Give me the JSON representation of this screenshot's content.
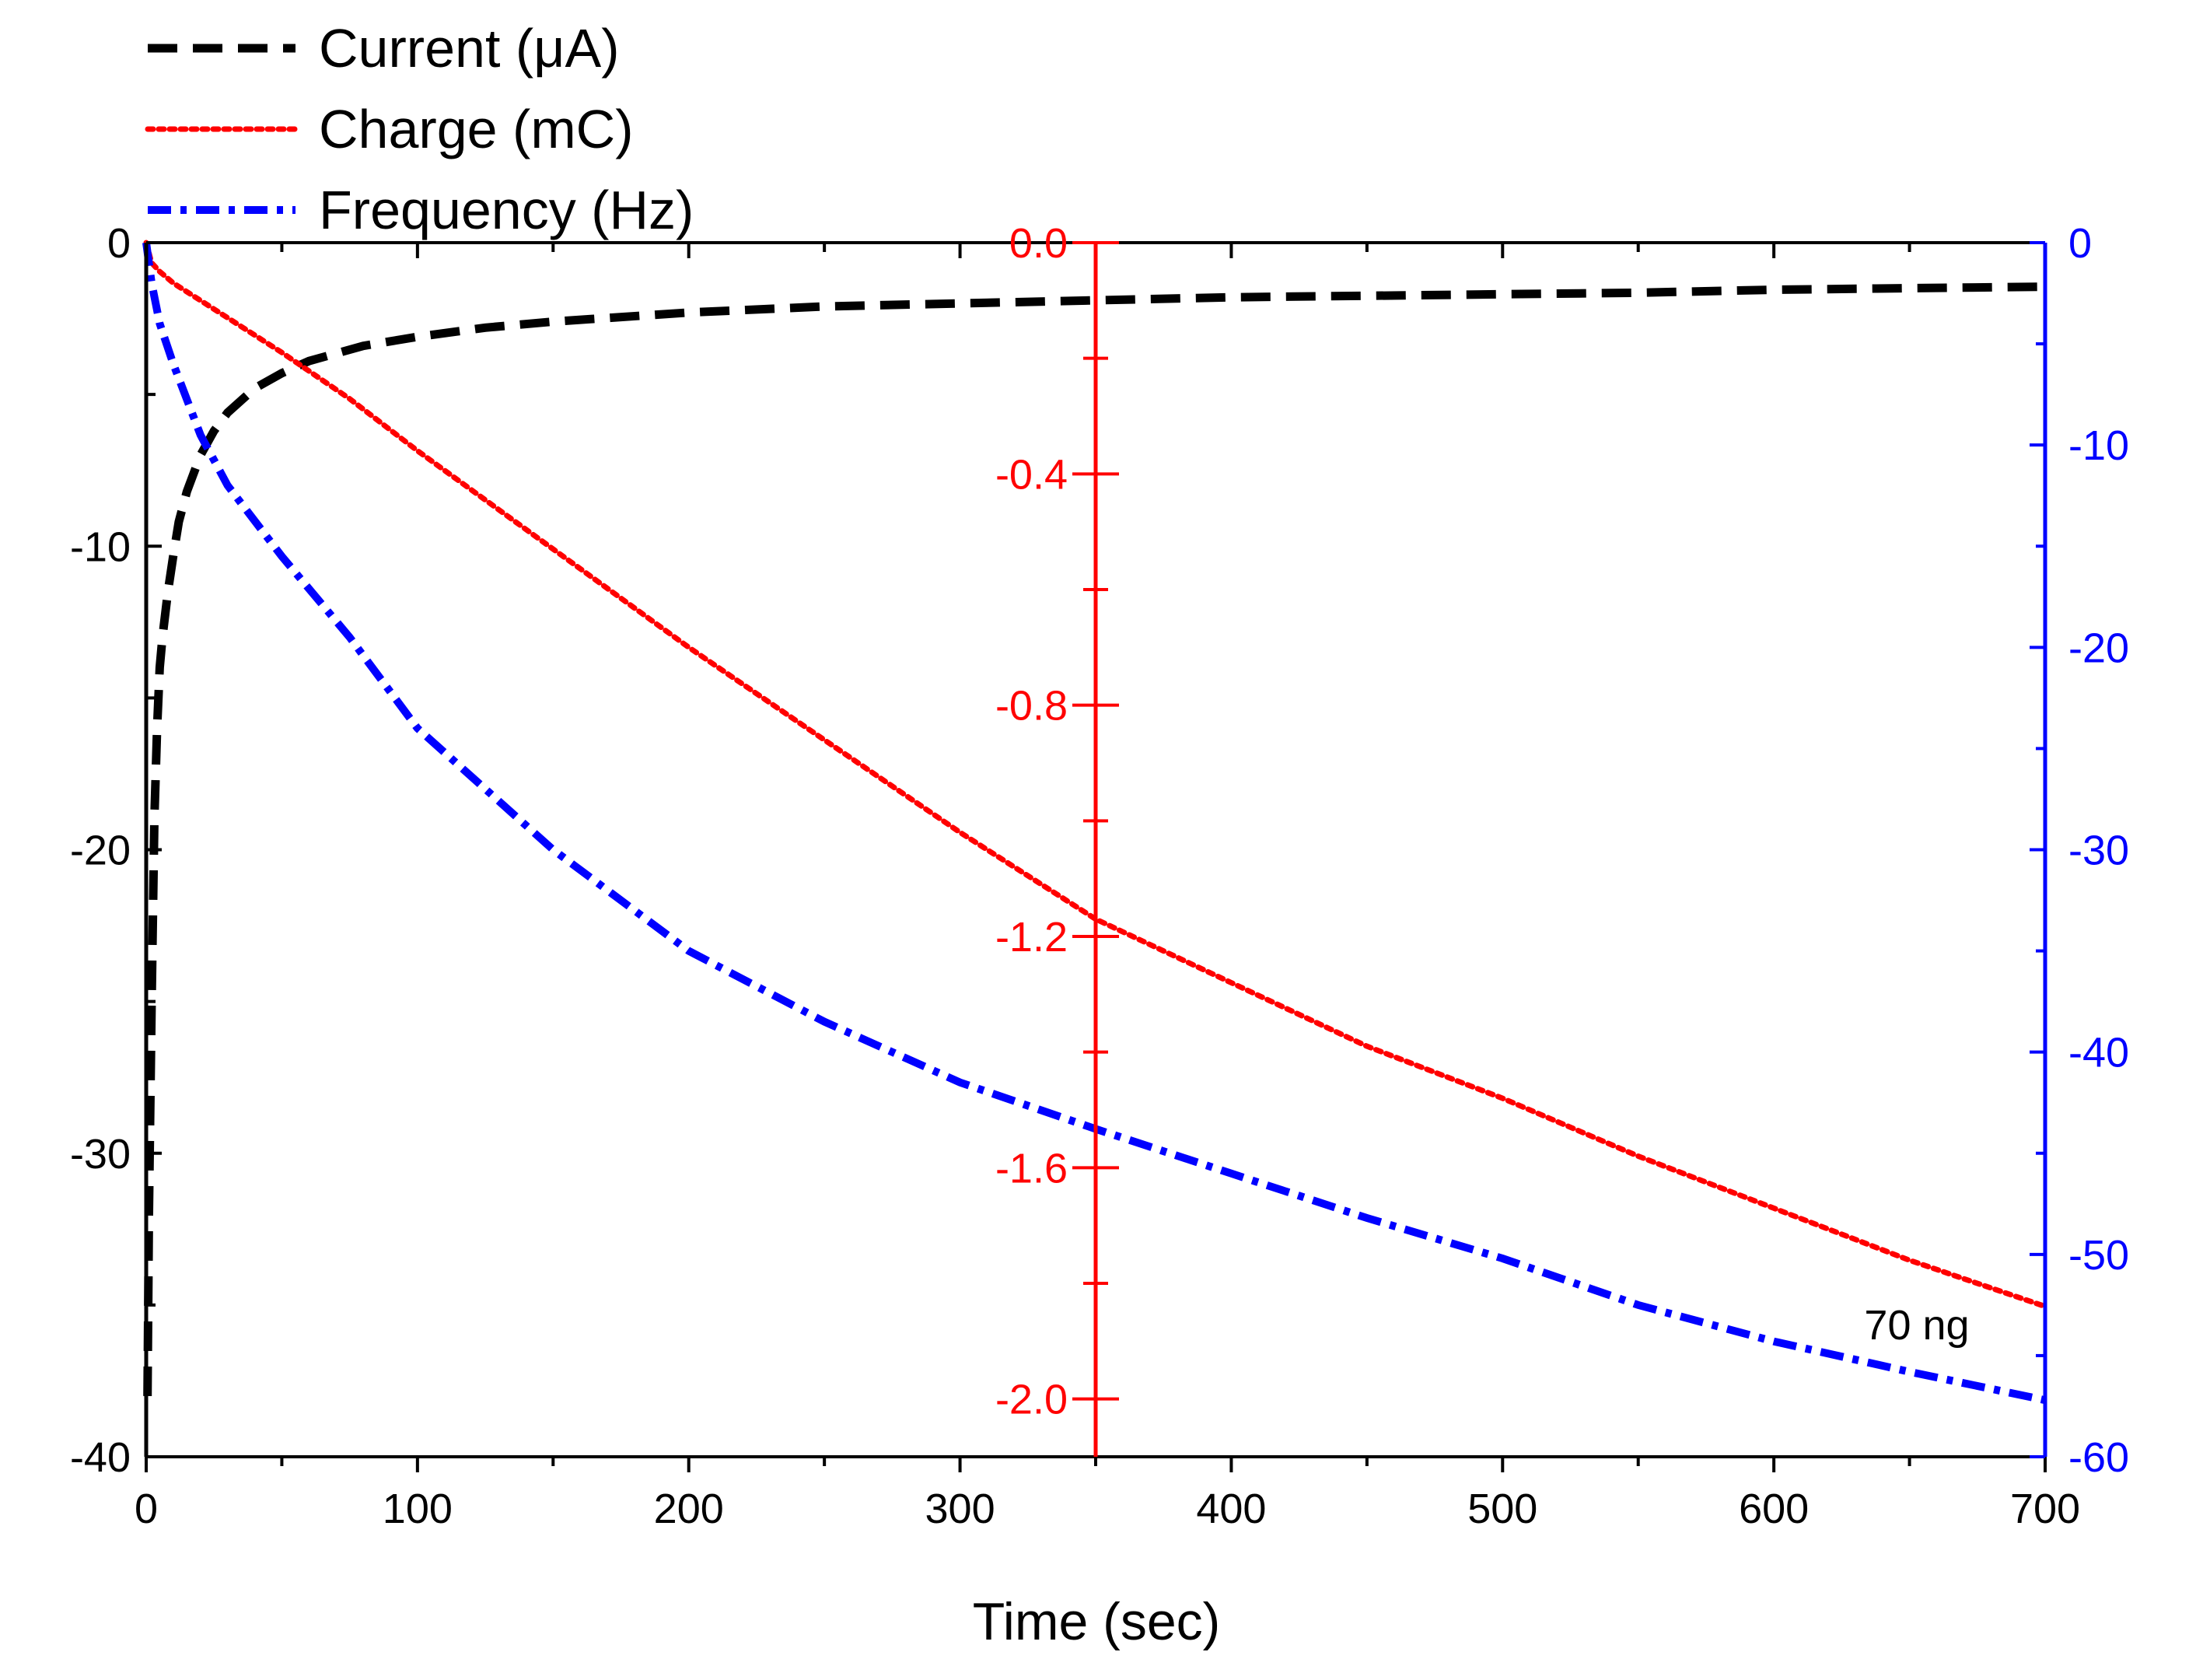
{
  "chart_data": {
    "type": "line",
    "title": "",
    "xlabel": "Time (sec)",
    "xlim": [
      0,
      700
    ],
    "x_ticks": [
      0,
      100,
      200,
      300,
      400,
      500,
      600,
      700
    ],
    "x_tick_labels": [
      "0",
      "100",
      "200",
      "300",
      "400",
      "500",
      "600",
      "700"
    ],
    "legend_position": "top-left",
    "grid": false,
    "annotation": "70 ng",
    "axes": [
      {
        "id": "current",
        "position": "left",
        "color": "#000000",
        "ylim": [
          -40,
          0
        ],
        "ticks": [
          0,
          -10,
          -20,
          -30,
          -40
        ],
        "tick_labels": [
          "0",
          "-10",
          "-20",
          "-30",
          "-40"
        ]
      },
      {
        "id": "charge",
        "position": "center",
        "at_x": 350,
        "color": "#ff0000",
        "ylim": [
          -2.1,
          0
        ],
        "ticks": [
          0.0,
          -0.4,
          -0.8,
          -1.2,
          -1.6,
          -2.0
        ],
        "tick_labels": [
          "0.0",
          "-0.4",
          "-0.8",
          "-1.2",
          "-1.6",
          "-2.0"
        ]
      },
      {
        "id": "frequency",
        "position": "right",
        "color": "#0000ff",
        "ylim": [
          -60,
          0
        ],
        "ticks": [
          0,
          -10,
          -20,
          -30,
          -40,
          -50,
          -60
        ],
        "tick_labels": [
          "0",
          "-10",
          "-20",
          "-30",
          "-40",
          "-50",
          "-60"
        ]
      }
    ],
    "series": [
      {
        "name": "Current (μA)",
        "axis": "current",
        "color": "#000000",
        "style": "dash",
        "x": [
          0.5,
          1,
          2,
          3,
          4,
          5,
          6,
          8,
          10,
          12,
          15,
          20,
          25,
          30,
          40,
          50,
          60,
          80,
          100,
          125,
          150,
          200,
          250,
          300,
          350,
          400,
          450,
          500,
          550,
          600,
          650,
          700
        ],
        "values": [
          -38,
          -32,
          -25,
          -19,
          -16,
          -14,
          -13,
          -11.5,
          -10.3,
          -9.2,
          -8.2,
          -7.0,
          -6.2,
          -5.6,
          -4.8,
          -4.3,
          -3.9,
          -3.4,
          -3.1,
          -2.8,
          -2.6,
          -2.3,
          -2.1,
          -2.0,
          -1.9,
          -1.8,
          -1.75,
          -1.7,
          -1.65,
          -1.55,
          -1.5,
          -1.45
        ]
      },
      {
        "name": "Charge (mC)",
        "axis": "charge",
        "color": "#ff0000",
        "style": "dot",
        "x": [
          0,
          2,
          5,
          10,
          20,
          30,
          50,
          75,
          100,
          150,
          200,
          250,
          300,
          350,
          400,
          450,
          500,
          550,
          600,
          650,
          700
        ],
        "values": [
          0,
          -0.035,
          -0.05,
          -0.07,
          -0.1,
          -0.13,
          -0.19,
          -0.27,
          -0.36,
          -0.53,
          -0.7,
          -0.86,
          -1.02,
          -1.17,
          -1.28,
          -1.39,
          -1.48,
          -1.58,
          -1.67,
          -1.76,
          -1.84
        ]
      },
      {
        "name": "Frequency (Hz)",
        "axis": "frequency",
        "color": "#0000ff",
        "style": "dashdot",
        "x": [
          0,
          2,
          5,
          10,
          20,
          30,
          50,
          75,
          100,
          150,
          200,
          250,
          300,
          350,
          400,
          450,
          500,
          550,
          600,
          650,
          700
        ],
        "values": [
          0,
          -2,
          -4,
          -6,
          -9.5,
          -12,
          -15.5,
          -19.5,
          -24,
          -30,
          -35,
          -38.5,
          -41.5,
          -43.8,
          -46,
          -48.2,
          -50.2,
          -52.5,
          -54.3,
          -55.8,
          -57.2
        ]
      }
    ]
  }
}
